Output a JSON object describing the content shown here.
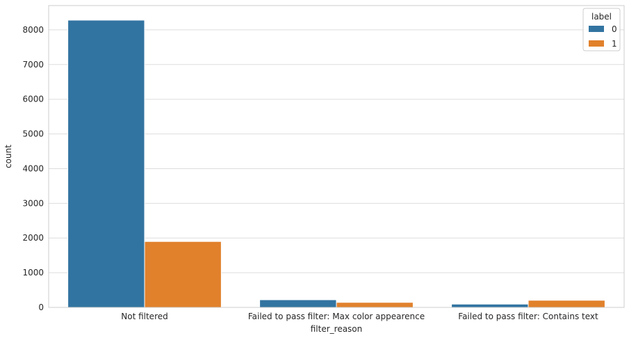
{
  "chart_data": {
    "type": "bar",
    "title": "",
    "xlabel": "filter_reason",
    "ylabel": "count",
    "categories": [
      "Not filtered",
      "Failed to pass filter: Max color appearence",
      "Failed to pass filter: Contains text"
    ],
    "series": [
      {
        "name": "0",
        "values": [
          8280,
          220,
          95
        ],
        "color": "#3274a1"
      },
      {
        "name": "1",
        "values": [
          1900,
          145,
          205
        ],
        "color": "#e1812c"
      }
    ],
    "ylim": [
      0,
      8700
    ],
    "yticks": [
      0,
      1000,
      2000,
      3000,
      4000,
      5000,
      6000,
      7000,
      8000
    ],
    "grid": true,
    "legend": {
      "title": "label",
      "position": "top-right"
    }
  }
}
